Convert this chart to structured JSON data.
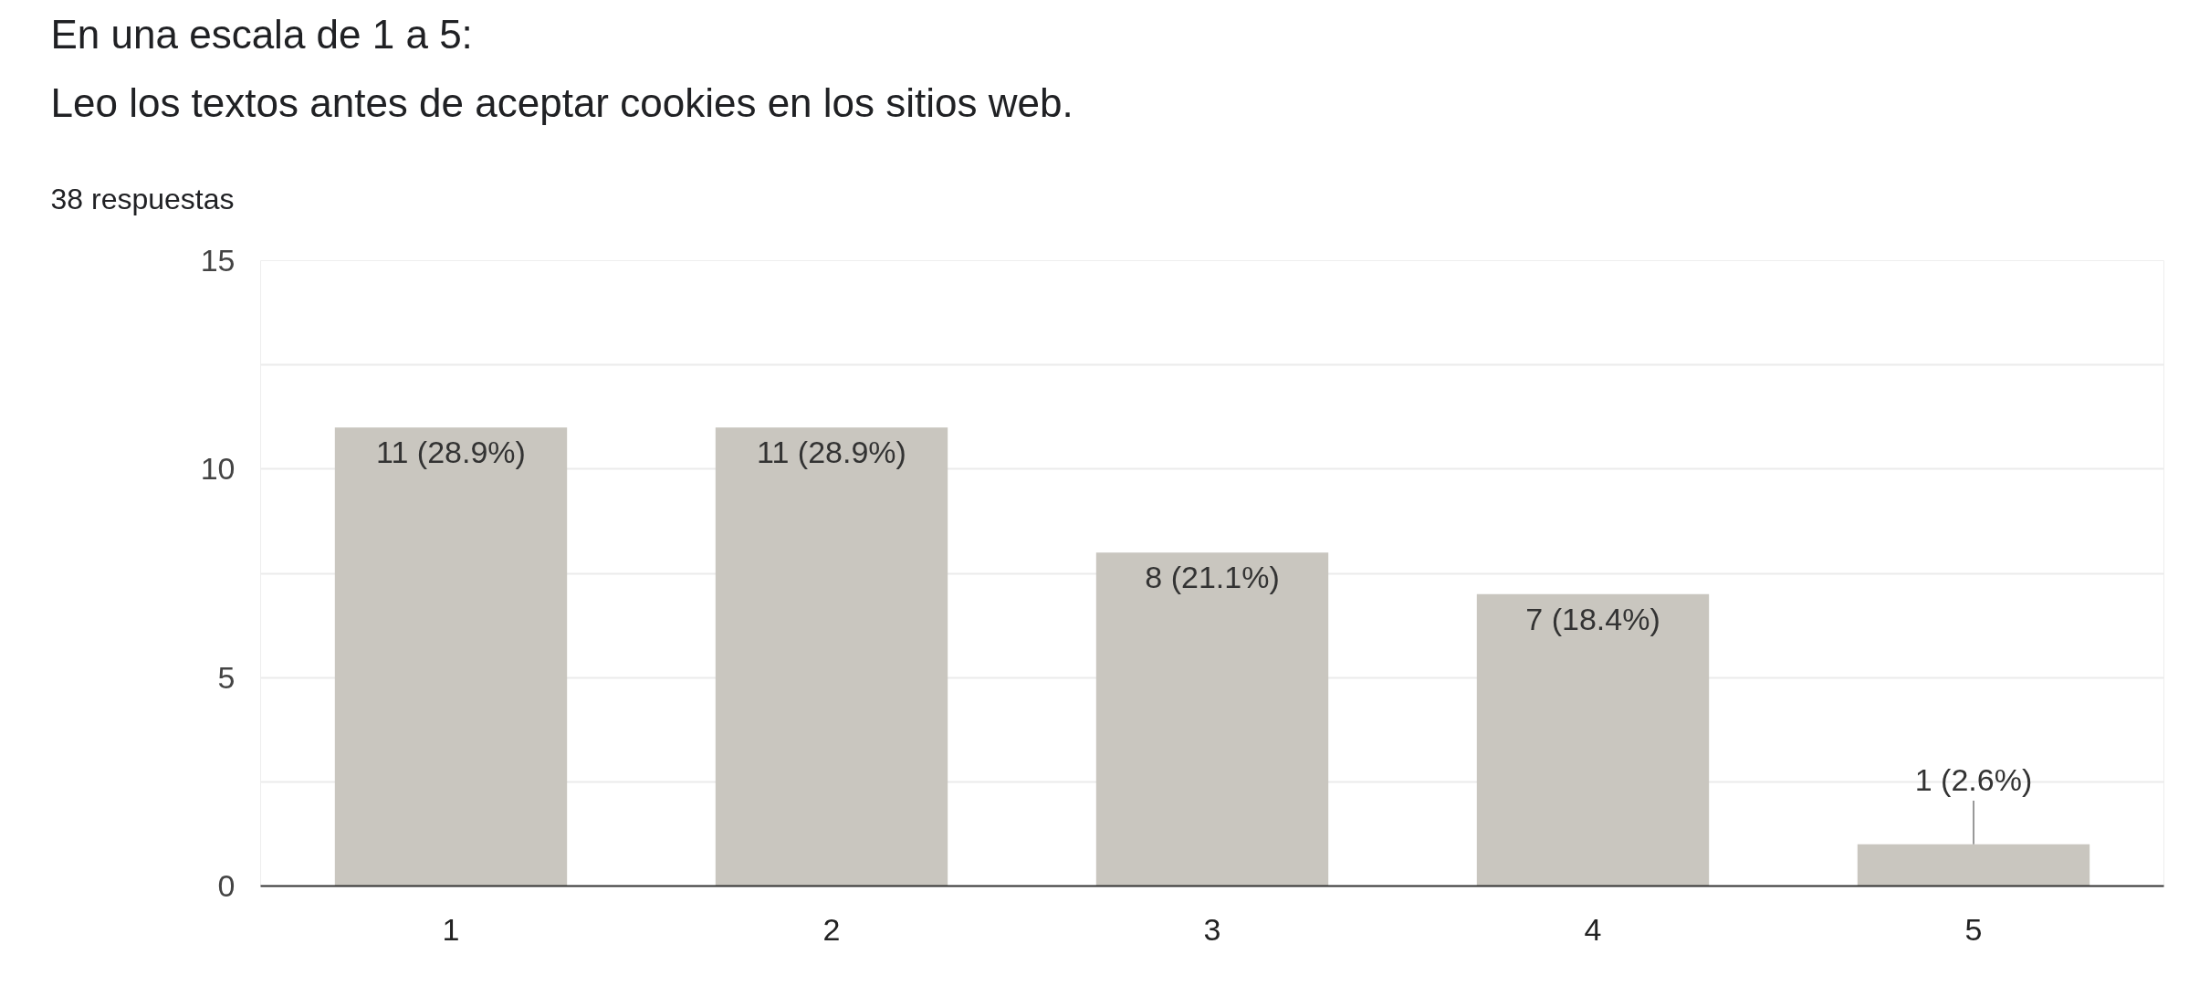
{
  "chart_data": {
    "type": "bar",
    "title": "En una escala de 1 a 5:\nLeo los textos antes de aceptar cookies en los sitios web.",
    "subtitle": "38 respuestas",
    "categories": [
      "1",
      "2",
      "3",
      "4",
      "5"
    ],
    "values": [
      11,
      11,
      8,
      7,
      1
    ],
    "color": "#c9c6bf",
    "value_labels": [
      "11 (28.9%)",
      "11 (28.9%)",
      "8 (21.1%)",
      "7 (18.4%)",
      "1 (2.6%)"
    ],
    "ylim": [
      0,
      15
    ],
    "yticks": [
      0,
      {
        "value": 2.5,
        "label": null
      },
      5,
      {
        "value": 7.5,
        "label": null
      },
      10,
      {
        "value": 12.5,
        "label": null
      },
      15
    ],
    "grid": "y"
  }
}
